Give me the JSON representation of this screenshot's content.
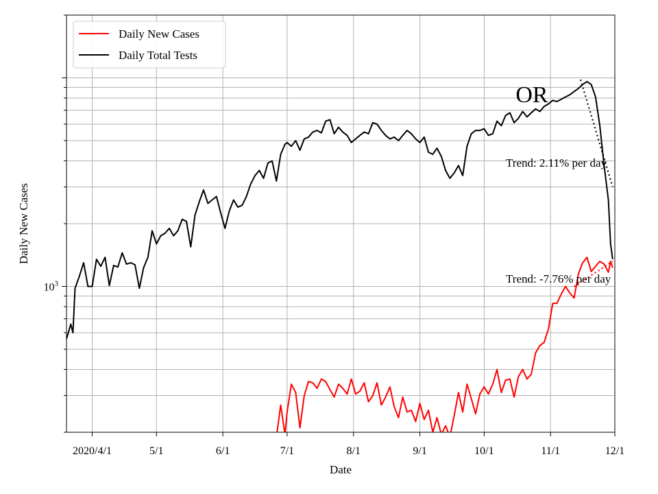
{
  "chart_data": {
    "type": "line",
    "xlabel": "Date",
    "ylabel": "Daily New Cases",
    "y_scale": "log",
    "ylim": [
      200,
      20000
    ],
    "y_tick_labels": [
      {
        "value": 1000,
        "label": "10",
        "exp": "3"
      }
    ],
    "x_ticks": [
      {
        "date": "2020-04-01",
        "label": "2020/4/1"
      },
      {
        "date": "2020-05-01",
        "label": "5/1"
      },
      {
        "date": "2020-06-01",
        "label": "6/1"
      },
      {
        "date": "2020-07-01",
        "label": "7/1"
      },
      {
        "date": "2020-08-01",
        "label": "8/1"
      },
      {
        "date": "2020-09-01",
        "label": "9/1"
      },
      {
        "date": "2020-10-01",
        "label": "10/1"
      },
      {
        "date": "2020-11-01",
        "label": "11/1"
      },
      {
        "date": "2020-12-01",
        "label": "12/1"
      }
    ],
    "xlim": [
      "2020-03-20",
      "2020-12-01"
    ],
    "grid": true,
    "legend_position": "upper-left",
    "state_label": "OR",
    "annotations": [
      "Trend: 2.11% per day",
      "Trend: -7.76% per day"
    ],
    "series": [
      {
        "name": "Daily New Cases",
        "color": "#ff0000",
        "points": [
          [
            "2020-06-26",
            190
          ],
          [
            "2020-06-28",
            270
          ],
          [
            "2020-06-30",
            195
          ],
          [
            "2020-07-01",
            250
          ],
          [
            "2020-07-03",
            340
          ],
          [
            "2020-07-05",
            310
          ],
          [
            "2020-07-07",
            210
          ],
          [
            "2020-07-09",
            300
          ],
          [
            "2020-07-11",
            350
          ],
          [
            "2020-07-13",
            345
          ],
          [
            "2020-07-15",
            325
          ],
          [
            "2020-07-17",
            360
          ],
          [
            "2020-07-19",
            350
          ],
          [
            "2020-07-21",
            320
          ],
          [
            "2020-07-23",
            295
          ],
          [
            "2020-07-25",
            340
          ],
          [
            "2020-07-27",
            325
          ],
          [
            "2020-07-29",
            305
          ],
          [
            "2020-07-31",
            360
          ],
          [
            "2020-08-02",
            305
          ],
          [
            "2020-08-04",
            315
          ],
          [
            "2020-08-06",
            345
          ],
          [
            "2020-08-08",
            280
          ],
          [
            "2020-08-10",
            300
          ],
          [
            "2020-08-12",
            345
          ],
          [
            "2020-08-14",
            270
          ],
          [
            "2020-08-16",
            295
          ],
          [
            "2020-08-18",
            330
          ],
          [
            "2020-08-20",
            265
          ],
          [
            "2020-08-22",
            235
          ],
          [
            "2020-08-24",
            295
          ],
          [
            "2020-08-26",
            250
          ],
          [
            "2020-08-28",
            255
          ],
          [
            "2020-08-30",
            225
          ],
          [
            "2020-09-01",
            275
          ],
          [
            "2020-09-03",
            230
          ],
          [
            "2020-09-05",
            255
          ],
          [
            "2020-09-07",
            200
          ],
          [
            "2020-09-09",
            235
          ],
          [
            "2020-09-11",
            195
          ],
          [
            "2020-09-13",
            215
          ],
          [
            "2020-09-15",
            190
          ],
          [
            "2020-09-17",
            240
          ],
          [
            "2020-09-19",
            310
          ],
          [
            "2020-09-21",
            250
          ],
          [
            "2020-09-23",
            340
          ],
          [
            "2020-09-25",
            290
          ],
          [
            "2020-09-27",
            245
          ],
          [
            "2020-09-29",
            305
          ],
          [
            "2020-10-01",
            330
          ],
          [
            "2020-10-03",
            305
          ],
          [
            "2020-10-05",
            340
          ],
          [
            "2020-10-07",
            400
          ],
          [
            "2020-10-09",
            310
          ],
          [
            "2020-10-11",
            355
          ],
          [
            "2020-10-13",
            360
          ],
          [
            "2020-10-15",
            295
          ],
          [
            "2020-10-17",
            370
          ],
          [
            "2020-10-19",
            400
          ],
          [
            "2020-10-21",
            360
          ],
          [
            "2020-10-23",
            380
          ],
          [
            "2020-10-25",
            480
          ],
          [
            "2020-10-27",
            520
          ],
          [
            "2020-10-29",
            540
          ],
          [
            "2020-10-31",
            625
          ],
          [
            "2020-11-02",
            830
          ],
          [
            "2020-11-04",
            830
          ],
          [
            "2020-11-06",
            920
          ],
          [
            "2020-11-08",
            1000
          ],
          [
            "2020-11-10",
            930
          ],
          [
            "2020-11-12",
            880
          ],
          [
            "2020-11-14",
            1150
          ],
          [
            "2020-11-16",
            1300
          ],
          [
            "2020-11-18",
            1380
          ],
          [
            "2020-11-20",
            1180
          ],
          [
            "2020-11-22",
            1250
          ],
          [
            "2020-11-24",
            1320
          ],
          [
            "2020-11-26",
            1280
          ],
          [
            "2020-11-28",
            1170
          ],
          [
            "2020-11-29",
            1320
          ],
          [
            "2020-11-30",
            1230
          ]
        ]
      },
      {
        "name": "Daily Total Tests",
        "color": "#000000",
        "points": [
          [
            "2020-03-20",
            560
          ],
          [
            "2020-03-22",
            660
          ],
          [
            "2020-03-23",
            600
          ],
          [
            "2020-03-24",
            980
          ],
          [
            "2020-03-26",
            1120
          ],
          [
            "2020-03-28",
            1300
          ],
          [
            "2020-03-30",
            1000
          ],
          [
            "2020-04-01",
            1000
          ],
          [
            "2020-04-03",
            1350
          ],
          [
            "2020-04-05",
            1250
          ],
          [
            "2020-04-07",
            1380
          ],
          [
            "2020-04-09",
            1010
          ],
          [
            "2020-04-11",
            1260
          ],
          [
            "2020-04-13",
            1240
          ],
          [
            "2020-04-15",
            1450
          ],
          [
            "2020-04-17",
            1280
          ],
          [
            "2020-04-19",
            1300
          ],
          [
            "2020-04-21",
            1270
          ],
          [
            "2020-04-23",
            980
          ],
          [
            "2020-04-25",
            1230
          ],
          [
            "2020-04-27",
            1380
          ],
          [
            "2020-04-29",
            1850
          ],
          [
            "2020-05-01",
            1600
          ],
          [
            "2020-05-03",
            1750
          ],
          [
            "2020-05-05",
            1800
          ],
          [
            "2020-05-07",
            1900
          ],
          [
            "2020-05-09",
            1750
          ],
          [
            "2020-05-11",
            1850
          ],
          [
            "2020-05-13",
            2100
          ],
          [
            "2020-05-15",
            2050
          ],
          [
            "2020-05-17",
            1550
          ],
          [
            "2020-05-19",
            2200
          ],
          [
            "2020-05-21",
            2550
          ],
          [
            "2020-05-23",
            2900
          ],
          [
            "2020-05-25",
            2500
          ],
          [
            "2020-05-27",
            2600
          ],
          [
            "2020-05-29",
            2700
          ],
          [
            "2020-05-31",
            2250
          ],
          [
            "2020-06-02",
            1900
          ],
          [
            "2020-06-04",
            2300
          ],
          [
            "2020-06-06",
            2600
          ],
          [
            "2020-06-08",
            2400
          ],
          [
            "2020-06-10",
            2450
          ],
          [
            "2020-06-12",
            2700
          ],
          [
            "2020-06-14",
            3100
          ],
          [
            "2020-06-16",
            3400
          ],
          [
            "2020-06-18",
            3600
          ],
          [
            "2020-06-20",
            3300
          ],
          [
            "2020-06-22",
            3900
          ],
          [
            "2020-06-24",
            4000
          ],
          [
            "2020-06-26",
            3200
          ],
          [
            "2020-06-28",
            4300
          ],
          [
            "2020-06-30",
            4800
          ],
          [
            "2020-07-01",
            4900
          ],
          [
            "2020-07-03",
            4700
          ],
          [
            "2020-07-05",
            5000
          ],
          [
            "2020-07-07",
            4500
          ],
          [
            "2020-07-09",
            5100
          ],
          [
            "2020-07-11",
            5200
          ],
          [
            "2020-07-13",
            5500
          ],
          [
            "2020-07-15",
            5600
          ],
          [
            "2020-07-17",
            5450
          ],
          [
            "2020-07-19",
            6200
          ],
          [
            "2020-07-21",
            6300
          ],
          [
            "2020-07-23",
            5400
          ],
          [
            "2020-07-25",
            5800
          ],
          [
            "2020-07-27",
            5500
          ],
          [
            "2020-07-29",
            5300
          ],
          [
            "2020-07-31",
            4900
          ],
          [
            "2020-08-02",
            5100
          ],
          [
            "2020-08-04",
            5300
          ],
          [
            "2020-08-06",
            5500
          ],
          [
            "2020-08-08",
            5400
          ],
          [
            "2020-08-10",
            6100
          ],
          [
            "2020-08-12",
            6000
          ],
          [
            "2020-08-14",
            5600
          ],
          [
            "2020-08-16",
            5300
          ],
          [
            "2020-08-18",
            5100
          ],
          [
            "2020-08-20",
            5200
          ],
          [
            "2020-08-22",
            5000
          ],
          [
            "2020-08-24",
            5300
          ],
          [
            "2020-08-26",
            5600
          ],
          [
            "2020-08-28",
            5400
          ],
          [
            "2020-08-30",
            5100
          ],
          [
            "2020-09-01",
            4900
          ],
          [
            "2020-09-03",
            5200
          ],
          [
            "2020-09-05",
            4400
          ],
          [
            "2020-09-07",
            4300
          ],
          [
            "2020-09-09",
            4600
          ],
          [
            "2020-09-11",
            4200
          ],
          [
            "2020-09-13",
            3600
          ],
          [
            "2020-09-15",
            3300
          ],
          [
            "2020-09-17",
            3500
          ],
          [
            "2020-09-19",
            3800
          ],
          [
            "2020-09-21",
            3400
          ],
          [
            "2020-09-23",
            4700
          ],
          [
            "2020-09-25",
            5400
          ],
          [
            "2020-09-27",
            5600
          ],
          [
            "2020-09-29",
            5600
          ],
          [
            "2020-10-01",
            5700
          ],
          [
            "2020-10-03",
            5300
          ],
          [
            "2020-10-05",
            5400
          ],
          [
            "2020-10-07",
            6200
          ],
          [
            "2020-10-09",
            5900
          ],
          [
            "2020-10-11",
            6600
          ],
          [
            "2020-10-13",
            6800
          ],
          [
            "2020-10-15",
            6100
          ],
          [
            "2020-10-17",
            6400
          ],
          [
            "2020-10-19",
            6900
          ],
          [
            "2020-10-21",
            6500
          ],
          [
            "2020-10-23",
            6800
          ],
          [
            "2020-10-25",
            7100
          ],
          [
            "2020-10-27",
            6900
          ],
          [
            "2020-10-29",
            7300
          ],
          [
            "2020-10-31",
            7500
          ],
          [
            "2020-11-02",
            7800
          ],
          [
            "2020-11-04",
            7700
          ],
          [
            "2020-11-06",
            7900
          ],
          [
            "2020-11-08",
            8100
          ],
          [
            "2020-11-10",
            8300
          ],
          [
            "2020-11-12",
            8600
          ],
          [
            "2020-11-14",
            8900
          ],
          [
            "2020-11-16",
            9300
          ],
          [
            "2020-11-18",
            9600
          ],
          [
            "2020-11-20",
            9300
          ],
          [
            "2020-11-22",
            8100
          ],
          [
            "2020-11-24",
            5900
          ],
          [
            "2020-11-26",
            3800
          ],
          [
            "2020-11-28",
            2600
          ],
          [
            "2020-11-29",
            1600
          ],
          [
            "2020-11-30",
            1350
          ]
        ]
      }
    ],
    "trend_lines": [
      {
        "color": "#000000",
        "style": "dotted",
        "from": [
          "2020-11-15",
          9800
        ],
        "to": [
          "2020-11-30",
          3000
        ]
      },
      {
        "color": "#ff0000",
        "style": "dotted",
        "from": [
          "2020-11-12",
          1000
        ],
        "to": [
          "2020-11-30",
          1320
        ]
      }
    ]
  }
}
